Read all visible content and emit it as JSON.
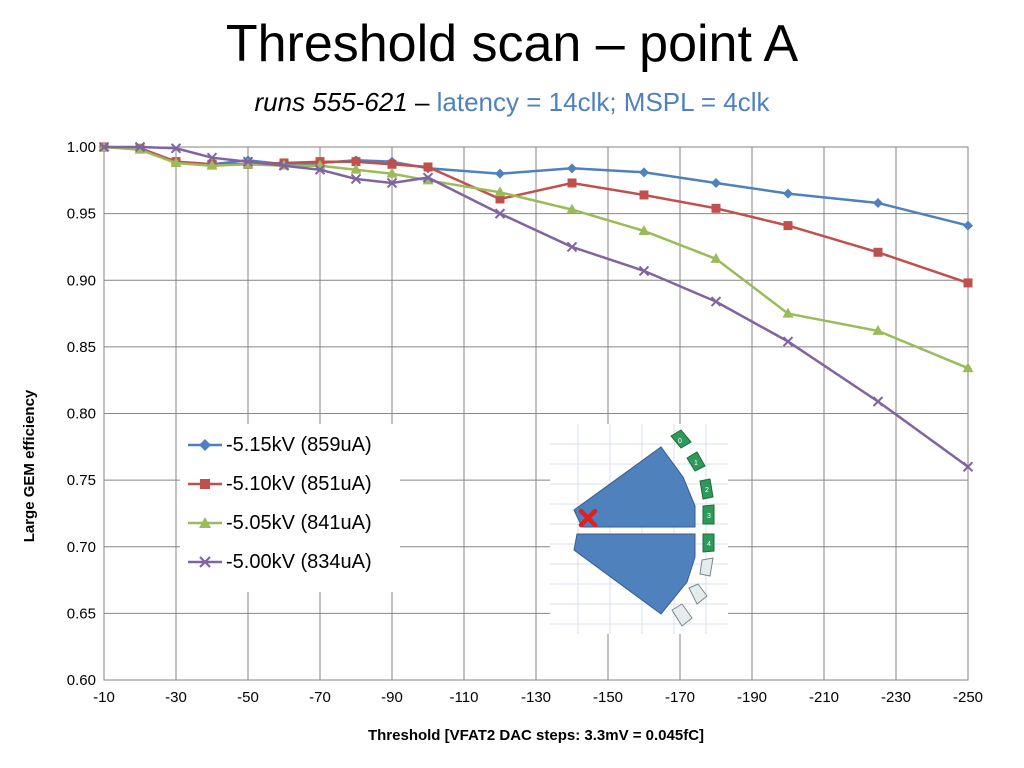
{
  "slide": {
    "title": "Threshold scan – point A",
    "subtitle_runs": "runs 555-621",
    "subtitle_dash": " – ",
    "subtitle_latency": "latency = 14clk; MSPL = 4clk"
  },
  "chart_data": {
    "type": "line",
    "xlabel": "Threshold [VFAT2 DAC steps: 3.3mV = 0.045fC]",
    "ylabel": "Large GEM efficiency",
    "xlim": [
      -10,
      -250
    ],
    "ylim": [
      0.6,
      1.0
    ],
    "xticks": [
      "-10",
      "-30",
      "-50",
      "-70",
      "-90",
      "-110",
      "-130",
      "-150",
      "-170",
      "-190",
      "-210",
      "-230",
      "-250"
    ],
    "yticks": [
      "0.60",
      "0.65",
      "0.70",
      "0.75",
      "0.80",
      "0.85",
      "0.90",
      "0.95",
      "1.00"
    ],
    "grid": true,
    "legend_position": "lower-left",
    "series": [
      {
        "name": "-5.15kV (859uA)",
        "color": "#4F81BD",
        "marker": "diamond",
        "x": [
          -10,
          -20,
          -30,
          -40,
          -50,
          -60,
          -70,
          -80,
          -90,
          -100,
          -120,
          -140,
          -160,
          -180,
          -200,
          -225,
          -250
        ],
        "y": [
          1.0,
          0.999,
          0.989,
          0.987,
          0.99,
          0.987,
          0.988,
          0.99,
          0.989,
          0.984,
          0.98,
          0.984,
          0.981,
          0.973,
          0.965,
          0.958,
          0.941
        ]
      },
      {
        "name": "-5.10kV (851uA)",
        "color": "#C0504D",
        "marker": "square",
        "x": [
          -10,
          -20,
          -30,
          -40,
          -50,
          -60,
          -70,
          -80,
          -90,
          -100,
          -120,
          -140,
          -160,
          -180,
          -200,
          -225,
          -250
        ],
        "y": [
          1.0,
          0.999,
          0.989,
          0.987,
          0.987,
          0.988,
          0.989,
          0.989,
          0.987,
          0.985,
          0.961,
          0.973,
          0.964,
          0.954,
          0.941,
          0.921,
          0.898
        ]
      },
      {
        "name": "-5.05kV (841uA)",
        "color": "#9BBB59",
        "marker": "triangle",
        "x": [
          -10,
          -20,
          -30,
          -40,
          -50,
          -60,
          -70,
          -80,
          -90,
          -100,
          -120,
          -140,
          -160,
          -180,
          -200,
          -225,
          -250
        ],
        "y": [
          1.0,
          0.998,
          0.988,
          0.986,
          0.987,
          0.986,
          0.986,
          0.983,
          0.98,
          0.975,
          0.966,
          0.953,
          0.937,
          0.916,
          0.875,
          0.862,
          0.834
        ]
      },
      {
        "name": "-5.00kV (834uA)",
        "color": "#8064A2",
        "marker": "x",
        "x": [
          -10,
          -20,
          -30,
          -40,
          -50,
          -60,
          -70,
          -80,
          -90,
          -100,
          -120,
          -140,
          -160,
          -180,
          -200,
          -225,
          -250
        ],
        "y": [
          1.0,
          1.0,
          0.999,
          0.992,
          0.989,
          0.986,
          0.983,
          0.976,
          0.973,
          0.977,
          0.95,
          0.925,
          0.907,
          0.884,
          0.854,
          0.809,
          0.76
        ]
      }
    ]
  },
  "inset": {
    "sector_labels": [
      "0",
      "1",
      "2",
      "3",
      "4"
    ],
    "chamber_color": "#4F81BD",
    "marker_color": "#E02020"
  }
}
